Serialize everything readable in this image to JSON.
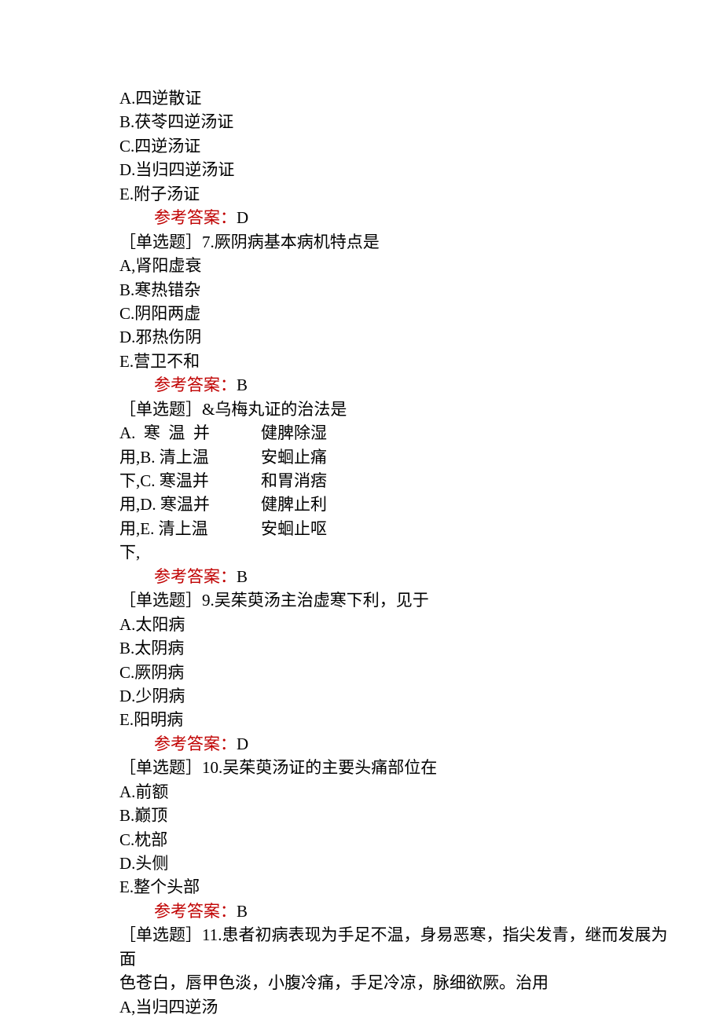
{
  "colors": {
    "text": "#000000",
    "answer_label": "#c00000",
    "background": "#ffffff"
  },
  "typography": {
    "font_family": "SimSun",
    "font_size_pt": 16,
    "line_height": 1.45
  },
  "q6": {
    "opts": {
      "A": "A.四逆散证",
      "B": "B.茯苓四逆汤证",
      "C": "C.四逆汤证",
      "D": "D.当归四逆汤证",
      "E": "E.附子汤证"
    },
    "answer_label": "参考答案：",
    "answer_value": "D"
  },
  "q7": {
    "stem": "［单选题］7.厥阴病基本病机特点是",
    "opts": {
      "A": "A,肾阳虚衰",
      "B": "B.寒热错杂",
      "C": "C.阴阳两虚",
      "D": "D.邪热伤阴",
      "E": "E.营卫不和"
    },
    "answer_label": "参考答案：",
    "answer_value": "B"
  },
  "q8": {
    "stem": "［单选题］&乌梅丸证的治法是",
    "rows": [
      {
        "left": "A.  寒  温  并",
        "right": "健脾除湿"
      },
      {
        "left": "用,B. 清上温",
        "right": "安蛔止痛"
      },
      {
        "left": "下,C. 寒温并",
        "right": "和胃消痞"
      },
      {
        "left": "用,D. 寒温并",
        "right": "健脾止利"
      },
      {
        "left": "用,E. 清上温",
        "right": "安蛔止呕"
      },
      {
        "left": "下,",
        "right": ""
      }
    ],
    "answer_label": "参考答案：",
    "answer_value": "B"
  },
  "q9": {
    "stem": "［单选题］9.吴茱萸汤主治虚寒下利，见于",
    "opts": {
      "A": "A.太阳病",
      "B": "B.太阴病",
      "C": "C.厥阴病",
      "D": "D.少阴病",
      "E": "E.阳明病"
    },
    "answer_label": "参考答案：",
    "answer_value": "D"
  },
  "q10": {
    "stem": "［单选题］10.吴茱萸汤证的主要头痛部位在",
    "opts": {
      "A": "A.前额",
      "B": "B.巅顶",
      "C": "C.枕部",
      "D": "D.头侧",
      "E": "E.整个头部"
    },
    "answer_label": "参考答案：",
    "answer_value": "B"
  },
  "q11": {
    "stem1": "［单选题］11.患者初病表现为手足不温，身易恶寒，指尖发青，继而发展为面",
    "stem2": "色苍白，唇甲色淡，小腹冷痛，手足冷凉，脉细欲厥。治用",
    "opts": {
      "A": "A,当归四逆汤"
    }
  }
}
